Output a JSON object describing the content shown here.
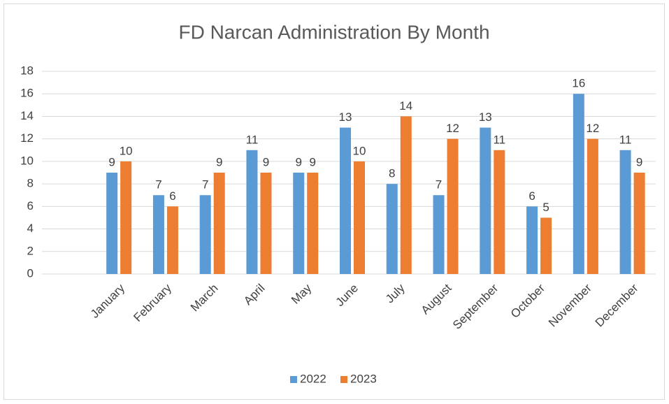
{
  "chart_data": {
    "type": "bar",
    "title": "FD Narcan Administration By Month",
    "categories": [
      null,
      "January",
      "February",
      "March",
      "April",
      "May",
      "June",
      "July",
      "August",
      "September",
      "October",
      "November",
      "December"
    ],
    "series": [
      {
        "name": "2022",
        "color": "#5b9bd5",
        "values": [
          null,
          9,
          7,
          7,
          11,
          9,
          13,
          8,
          7,
          13,
          6,
          16,
          11
        ]
      },
      {
        "name": "2023",
        "color": "#ed7d31",
        "values": [
          null,
          10,
          6,
          9,
          9,
          9,
          10,
          14,
          12,
          11,
          5,
          12,
          9
        ]
      }
    ],
    "ylim": [
      0,
      18
    ],
    "yticks": [
      0,
      2,
      4,
      6,
      8,
      10,
      12,
      14,
      16,
      18
    ],
    "grid": true,
    "legend": "bottom"
  }
}
